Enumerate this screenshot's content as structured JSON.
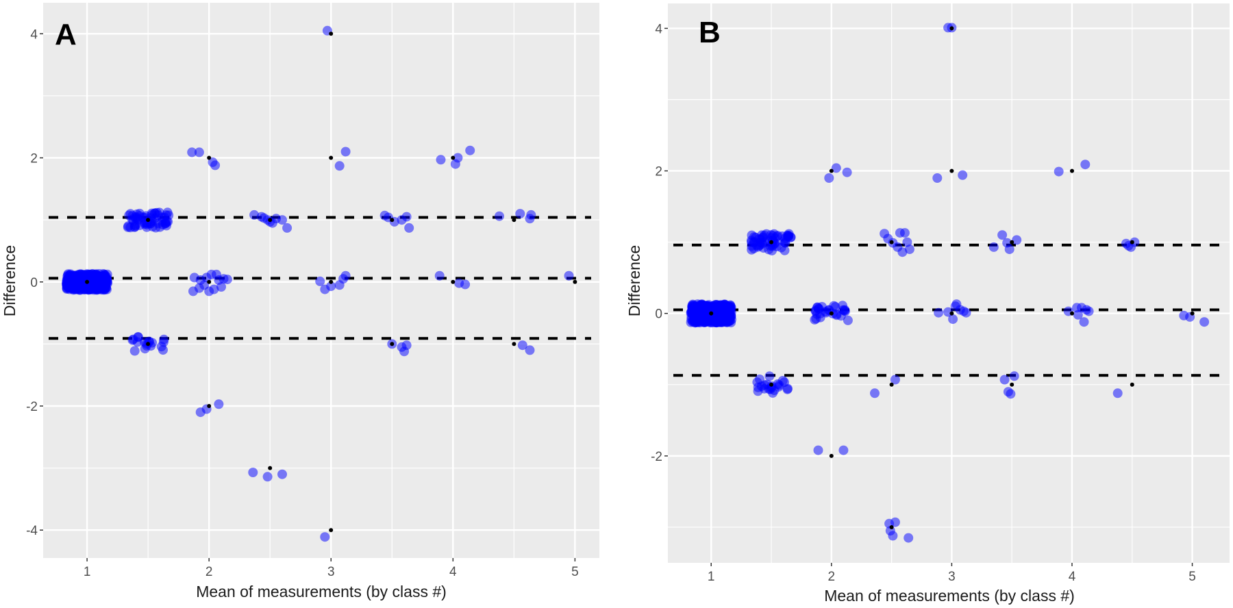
{
  "figure": {
    "point_color": "#0000ff",
    "point_alpha": 0.5,
    "mean_point_color": "#000000",
    "panel_background": "#ebebeb",
    "gridline_color": "#ffffff",
    "reference_line_color": "#000000"
  },
  "chart_data": [
    {
      "type": "scatter",
      "panel_label": "A",
      "title": "",
      "xlabel": "Mean of measurements (by class #)",
      "ylabel": "Difference",
      "xlim": [
        0.64,
        5.2
      ],
      "ylim": [
        -4.45,
        4.5
      ],
      "x_ticks": [
        1,
        2,
        3,
        4,
        5
      ],
      "y_ticks": [
        -4,
        -2,
        0,
        2,
        4
      ],
      "x_tick_labels": [
        "1",
        "2",
        "3",
        "4",
        "5"
      ],
      "y_tick_labels": [
        "-4",
        "-2",
        "0",
        "2",
        "4"
      ],
      "grid": true,
      "reference_lines": [
        {
          "name": "upper limit of agreement",
          "y": 1.04,
          "style": "dashed"
        },
        {
          "name": "mean difference",
          "y": 0.06,
          "style": "dashed"
        },
        {
          "name": "lower limit of agreement",
          "y": -0.91,
          "style": "dashed"
        }
      ],
      "mean_points": [
        [
          1,
          0
        ],
        [
          1.5,
          1
        ],
        [
          1.5,
          -1
        ],
        [
          2,
          2
        ],
        [
          2,
          0
        ],
        [
          2,
          -2
        ],
        [
          2.5,
          1
        ],
        [
          2.5,
          -3
        ],
        [
          3,
          4
        ],
        [
          3,
          2
        ],
        [
          3,
          0
        ],
        [
          3,
          -4
        ],
        [
          3.5,
          1
        ],
        [
          3.5,
          -1
        ],
        [
          4,
          2
        ],
        [
          4,
          0
        ],
        [
          4.5,
          1
        ],
        [
          4.5,
          -1
        ],
        [
          5,
          0
        ]
      ],
      "clusters": [
        {
          "x": 1,
          "y": 0,
          "n": 400,
          "jitter": "dense"
        },
        {
          "x": 1.5,
          "y": 1,
          "n": 60,
          "jitter": "dense"
        },
        {
          "x": 1.5,
          "y": -1,
          "n": 18,
          "jitter": "sparse"
        }
      ],
      "points": [
        [
          1.86,
          2.09
        ],
        [
          1.92,
          2.09
        ],
        [
          2.03,
          1.93
        ],
        [
          2.05,
          1.88
        ],
        [
          2.97,
          4.05
        ],
        [
          3.12,
          2.1
        ],
        [
          3.07,
          1.87
        ],
        [
          3.9,
          1.97
        ],
        [
          4.04,
          2.0
        ],
        [
          4.02,
          1.9
        ],
        [
          4.14,
          2.12
        ],
        [
          2.37,
          1.08
        ],
        [
          2.43,
          1.05
        ],
        [
          2.48,
          1.0
        ],
        [
          2.52,
          0.95
        ],
        [
          2.55,
          1.02
        ],
        [
          2.6,
          1.0
        ],
        [
          2.64,
          0.87
        ],
        [
          2.5,
          0.97
        ],
        [
          2.45,
          1.03
        ],
        [
          3.44,
          1.07
        ],
        [
          3.52,
          0.97
        ],
        [
          3.58,
          1.0
        ],
        [
          3.62,
          1.05
        ],
        [
          3.64,
          0.87
        ],
        [
          3.47,
          1.04
        ],
        [
          4.38,
          1.06
        ],
        [
          4.55,
          1.1
        ],
        [
          4.64,
          1.08
        ],
        [
          4.63,
          1.02
        ],
        [
          1.88,
          0.07
        ],
        [
          1.93,
          0.03
        ],
        [
          1.98,
          0.07
        ],
        [
          2.02,
          0.12
        ],
        [
          2.06,
          0.12
        ],
        [
          2.12,
          0.05
        ],
        [
          2.15,
          0.04
        ],
        [
          1.87,
          -0.15
        ],
        [
          1.92,
          -0.1
        ],
        [
          1.96,
          -0.05
        ],
        [
          2.0,
          -0.15
        ],
        [
          2.04,
          -0.12
        ],
        [
          2.08,
          0.03
        ],
        [
          2.1,
          -0.08
        ],
        [
          2.91,
          0.01
        ],
        [
          2.95,
          -0.12
        ],
        [
          3.0,
          -0.07
        ],
        [
          3.07,
          -0.05
        ],
        [
          3.1,
          0.05
        ],
        [
          3.12,
          0.1
        ],
        [
          3.89,
          0.1
        ],
        [
          4.05,
          -0.02
        ],
        [
          4.1,
          -0.04
        ],
        [
          4.95,
          0.1
        ],
        [
          3.5,
          -1.0
        ],
        [
          3.58,
          -1.05
        ],
        [
          3.6,
          -1.12
        ],
        [
          3.62,
          -1.02
        ],
        [
          4.57,
          -1.02
        ],
        [
          4.63,
          -1.1
        ],
        [
          1.93,
          -2.1
        ],
        [
          1.98,
          -2.05
        ],
        [
          2.08,
          -1.97
        ],
        [
          2.36,
          -3.07
        ],
        [
          2.48,
          -3.14
        ],
        [
          2.6,
          -3.1
        ],
        [
          2.95,
          -4.11
        ]
      ]
    },
    {
      "type": "scatter",
      "panel_label": "B",
      "title": "",
      "xlabel": "Mean of measurements (by class #)",
      "ylabel": "Difference",
      "xlim": [
        0.64,
        5.31
      ],
      "ylim": [
        -3.5,
        4.35
      ],
      "x_ticks": [
        1,
        2,
        3,
        4,
        5
      ],
      "y_ticks": [
        -2,
        0,
        2,
        4
      ],
      "x_tick_labels": [
        "1",
        "2",
        "3",
        "4",
        "5"
      ],
      "y_tick_labels": [
        "-2",
        "0",
        "2",
        "4"
      ],
      "grid": true,
      "reference_lines": [
        {
          "name": "upper limit of agreement",
          "y": 0.96,
          "style": "dashed"
        },
        {
          "name": "mean difference",
          "y": 0.05,
          "style": "dashed"
        },
        {
          "name": "lower limit of agreement",
          "y": -0.87,
          "style": "dashed"
        }
      ],
      "mean_points": [
        [
          1,
          0
        ],
        [
          1.5,
          1
        ],
        [
          1.5,
          -1
        ],
        [
          2,
          2
        ],
        [
          2,
          0
        ],
        [
          2,
          -2
        ],
        [
          2.5,
          1
        ],
        [
          2.5,
          -1
        ],
        [
          2.5,
          -3
        ],
        [
          3,
          4
        ],
        [
          3,
          2
        ],
        [
          3,
          0
        ],
        [
          3.5,
          1
        ],
        [
          3.5,
          -1
        ],
        [
          4,
          2
        ],
        [
          4,
          0
        ],
        [
          4.5,
          1
        ],
        [
          4.5,
          -1
        ],
        [
          5,
          0
        ]
      ],
      "clusters": [
        {
          "x": 1,
          "y": 0,
          "n": 400,
          "jitter": "dense"
        },
        {
          "x": 1.5,
          "y": 1,
          "n": 60,
          "jitter": "dense"
        },
        {
          "x": 1.5,
          "y": -1,
          "n": 22,
          "jitter": "sparse"
        },
        {
          "x": 2,
          "y": 0,
          "n": 28,
          "jitter": "sparse"
        }
      ],
      "points": [
        [
          2.97,
          4.01
        ],
        [
          3.0,
          4.01
        ],
        [
          1.98,
          1.9
        ],
        [
          2.04,
          2.04
        ],
        [
          2.13,
          1.98
        ],
        [
          2.88,
          1.9
        ],
        [
          3.09,
          1.94
        ],
        [
          3.89,
          1.99
        ],
        [
          4.11,
          2.09
        ],
        [
          2.44,
          1.12
        ],
        [
          2.47,
          1.05
        ],
        [
          2.51,
          0.99
        ],
        [
          2.55,
          0.93
        ],
        [
          2.57,
          1.13
        ],
        [
          2.61,
          1.13
        ],
        [
          2.63,
          1.0
        ],
        [
          2.59,
          0.86
        ],
        [
          2.65,
          0.9
        ],
        [
          3.35,
          0.93
        ],
        [
          3.42,
          1.1
        ],
        [
          3.48,
          0.9
        ],
        [
          3.54,
          1.03
        ],
        [
          3.46,
          0.99
        ],
        [
          4.45,
          0.98
        ],
        [
          4.49,
          0.93
        ],
        [
          4.52,
          1.0
        ],
        [
          4.47,
          0.95
        ],
        [
          2.89,
          0.01
        ],
        [
          2.97,
          0.02
        ],
        [
          3.01,
          -0.08
        ],
        [
          3.03,
          0.1
        ],
        [
          3.07,
          0.05
        ],
        [
          3.1,
          0.03
        ],
        [
          3.12,
          0.01
        ],
        [
          3.04,
          0.13
        ],
        [
          3.97,
          0.03
        ],
        [
          4.05,
          -0.02
        ],
        [
          4.08,
          0.08
        ],
        [
          4.12,
          0.05
        ],
        [
          4.1,
          -0.12
        ],
        [
          4.04,
          0.08
        ],
        [
          4.14,
          0.03
        ],
        [
          4.93,
          -0.03
        ],
        [
          4.98,
          -0.05
        ],
        [
          5.1,
          -0.12
        ],
        [
          2.36,
          -1.12
        ],
        [
          2.53,
          -0.93
        ],
        [
          3.44,
          -0.93
        ],
        [
          3.47,
          -1.1
        ],
        [
          3.49,
          -1.13
        ],
        [
          3.52,
          -0.88
        ],
        [
          4.38,
          -1.12
        ],
        [
          1.89,
          -1.92
        ],
        [
          2.1,
          -1.92
        ],
        [
          2.48,
          -2.95
        ],
        [
          2.53,
          -2.93
        ],
        [
          2.49,
          -3.05
        ],
        [
          2.51,
          -3.12
        ],
        [
          2.64,
          -3.15
        ]
      ]
    }
  ]
}
